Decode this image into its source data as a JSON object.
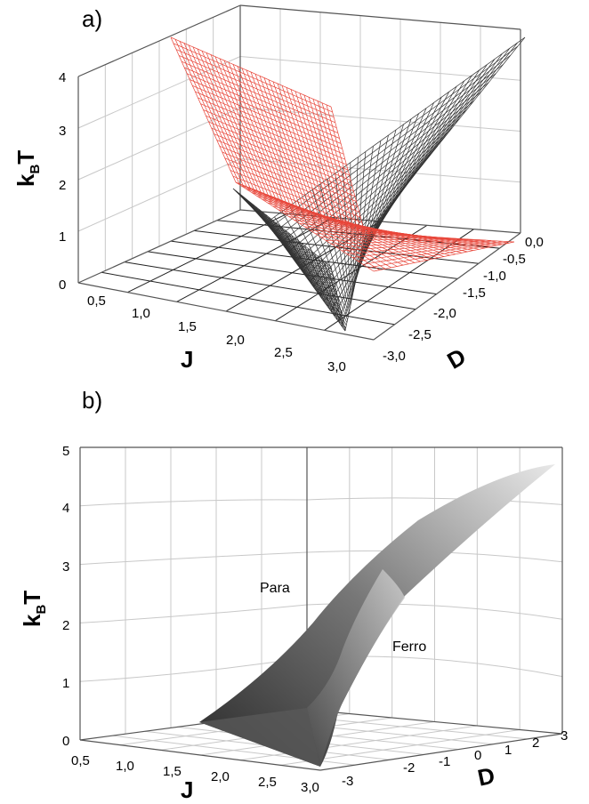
{
  "chart_data": [
    {
      "panel": "a)",
      "type": "surface3d",
      "z_axis": {
        "label": "kBT",
        "label_main": "k",
        "label_sub": "B",
        "label_tail": "T",
        "ticks": [
          "0",
          "1",
          "2",
          "3",
          "4"
        ],
        "range": [
          0,
          4
        ]
      },
      "x_axis": {
        "label": "J",
        "ticks": [
          "0,5",
          "1,0",
          "1,5",
          "2,0",
          "2,5",
          "3,0"
        ],
        "range": [
          0.5,
          3.0
        ]
      },
      "y_axis": {
        "label": "D",
        "ticks": [
          "0,0",
          "-0,5",
          "-1,0",
          "-1,5",
          "-2,0",
          "-2,5",
          "-3,0"
        ],
        "range": [
          -3.0,
          0.0
        ]
      },
      "surfaces": [
        {
          "color": "#e8463a",
          "style": "wireframe",
          "corners": [
            {
              "J": 0.5,
              "D": 0.0,
              "kBT": 3.6
            },
            {
              "J": 0.5,
              "D": -3.0,
              "kBT": 3.5
            },
            {
              "J": 3.0,
              "D": -3.0,
              "kBT": 0.6
            },
            {
              "J": 3.0,
              "D": 0.0,
              "kBT": 0.35
            }
          ]
        },
        {
          "color": "#333333",
          "style": "wireframe",
          "corners": [
            {
              "J": 0.5,
              "D": 0.0,
              "kBT": 1.3
            },
            {
              "J": 0.5,
              "D": -3.0,
              "kBT": 0.15
            },
            {
              "J": 3.0,
              "D": -3.0,
              "kBT": 0.2
            },
            {
              "J": 3.0,
              "D": 0.0,
              "kBT": 4.0
            }
          ]
        }
      ]
    },
    {
      "panel": "b)",
      "type": "surface3d",
      "z_axis": {
        "label": "kBT",
        "label_main": "k",
        "label_sub": "B",
        "label_tail": "T",
        "ticks": [
          "0",
          "1",
          "2",
          "3",
          "4",
          "5"
        ],
        "range": [
          0,
          5
        ]
      },
      "x_axis": {
        "label": "J",
        "ticks": [
          "0,5",
          "1,0",
          "1,5",
          "2,0",
          "2,5",
          "3,0"
        ],
        "range": [
          0.5,
          3.0
        ]
      },
      "y_axis": {
        "label": "D",
        "ticks": [
          "-3",
          "-2",
          "-1",
          "0",
          "1",
          "2",
          "3"
        ],
        "range": [
          -3,
          3
        ]
      },
      "annotations": [
        "Para",
        "Ferro"
      ],
      "surfaces": [
        {
          "color": "#555555",
          "style": "shaded",
          "corners": [
            {
              "J": 3.0,
              "D": -3.0,
              "kBT": 0.0
            },
            {
              "J": 3.0,
              "D": 3.0,
              "kBT": 4.7
            }
          ]
        }
      ]
    }
  ]
}
